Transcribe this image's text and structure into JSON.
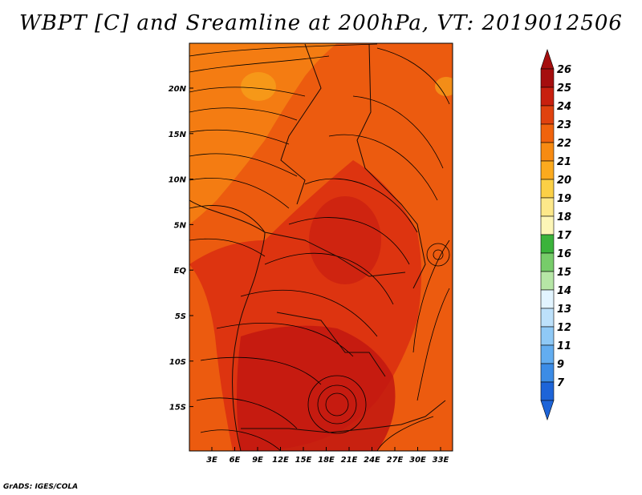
{
  "title": "WBPT [C] and Sreamline at 200hPa, VT: 2019012506",
  "credit": "GrADS: IGES/COLA",
  "map": {
    "lon_labels": [
      "3E",
      "6E",
      "9E",
      "12E",
      "15E",
      "18E",
      "21E",
      "24E",
      "27E",
      "30E",
      "33E"
    ],
    "lat_labels": [
      "20N",
      "15N",
      "10N",
      "5N",
      "EQ",
      "5S",
      "10S",
      "15S"
    ],
    "field_colors": {
      "c21": "#f7a21b",
      "c22": "#f47c12",
      "c23": "#ec5b0f",
      "c24": "#dd3410",
      "c25": "#c21810"
    },
    "line_color": "#000000"
  },
  "colorbar": {
    "labels": [
      "26",
      "25",
      "24",
      "23",
      "22",
      "21",
      "20",
      "19",
      "18",
      "17",
      "16",
      "15",
      "14",
      "13",
      "12",
      "11",
      "9",
      "7"
    ],
    "colors": [
      "#a50e0e",
      "#c8200f",
      "#e0420f",
      "#f0630d",
      "#f78b12",
      "#fbaa1e",
      "#fbd046",
      "#fde88a",
      "#fdf6b7",
      "#3bb33b",
      "#77cc6a",
      "#b6e6a6",
      "#e2f4ff",
      "#bde1fb",
      "#8fc9f6",
      "#63adf0",
      "#3c8ce6",
      "#1d64d8"
    ],
    "top_cap_color": "#a50e0e",
    "bottom_cap_color": "#1d64d8"
  }
}
